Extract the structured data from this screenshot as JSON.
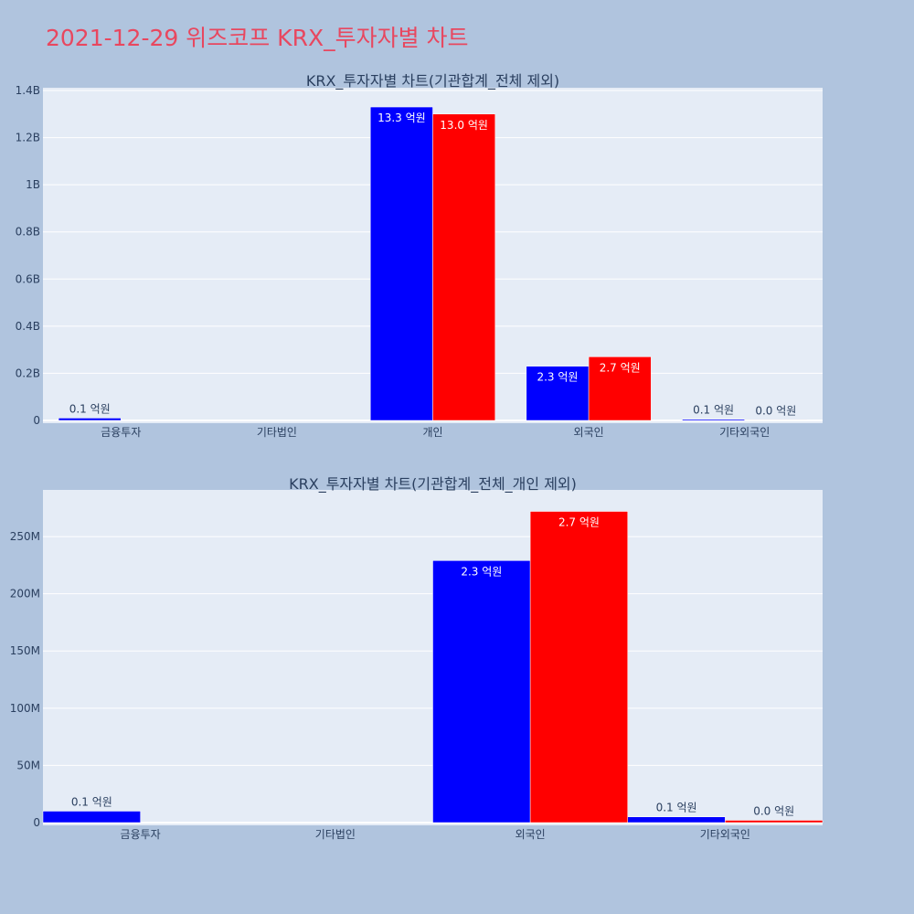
{
  "page": {
    "title": "2021-12-29 위즈코프 KRX_투자자별 차트"
  },
  "colors": {
    "series_1": "#0000ff",
    "series_2": "#ff0000",
    "title": "#e8475f",
    "background": "#b0c4de",
    "plot_background": "#e5ecf6"
  },
  "chart_data": [
    {
      "type": "bar",
      "title": "KRX_투자자별 차트(기관합계_전체 제외)",
      "categories": [
        "금융투자",
        "기타법인",
        "개인",
        "외국인",
        "기타외국인"
      ],
      "series": [
        {
          "color": "#0000ff",
          "values": [
            10000000,
            0,
            1330000000,
            230000000,
            5000000
          ],
          "labels": [
            "0.1 억원",
            "",
            "13.3 억원",
            "2.3 억원",
            "0.1 억원"
          ]
        },
        {
          "color": "#ff0000",
          "values": [
            0,
            0,
            1300000000,
            270000000,
            2000000
          ],
          "labels": [
            "",
            "",
            "13.0 억원",
            "2.7 억원",
            "0.0 억원"
          ]
        }
      ],
      "ylim": [
        0,
        1400000000
      ],
      "yticks": [
        0,
        200000000,
        400000000,
        600000000,
        800000000,
        1000000000,
        1200000000,
        1400000000
      ],
      "ytick_labels": [
        "0",
        "0.2B",
        "0.4B",
        "0.6B",
        "0.8B",
        "1B",
        "1.2B",
        "1.4B"
      ],
      "grid": true,
      "legend": "none"
    },
    {
      "type": "bar",
      "title": "KRX_투자자별 차트(기관합계_전체_개인 제외)",
      "categories": [
        "금융투자",
        "기타법인",
        "외국인",
        "기타외국인"
      ],
      "series": [
        {
          "color": "#0000ff",
          "values": [
            10000000,
            0,
            229000000,
            5000000
          ],
          "labels": [
            "0.1 억원",
            "",
            "2.3 억원",
            "0.1 억원"
          ]
        },
        {
          "color": "#ff0000",
          "values": [
            0,
            0,
            272000000,
            2000000
          ],
          "labels": [
            "",
            "",
            "2.7 억원",
            "0.0 억원"
          ]
        }
      ],
      "ylim": [
        0,
        290000000
      ],
      "yticks": [
        0,
        50000000,
        100000000,
        150000000,
        200000000,
        250000000
      ],
      "ytick_labels": [
        "0",
        "50M",
        "100M",
        "150M",
        "200M",
        "250M"
      ],
      "grid": true,
      "legend": "none"
    }
  ]
}
